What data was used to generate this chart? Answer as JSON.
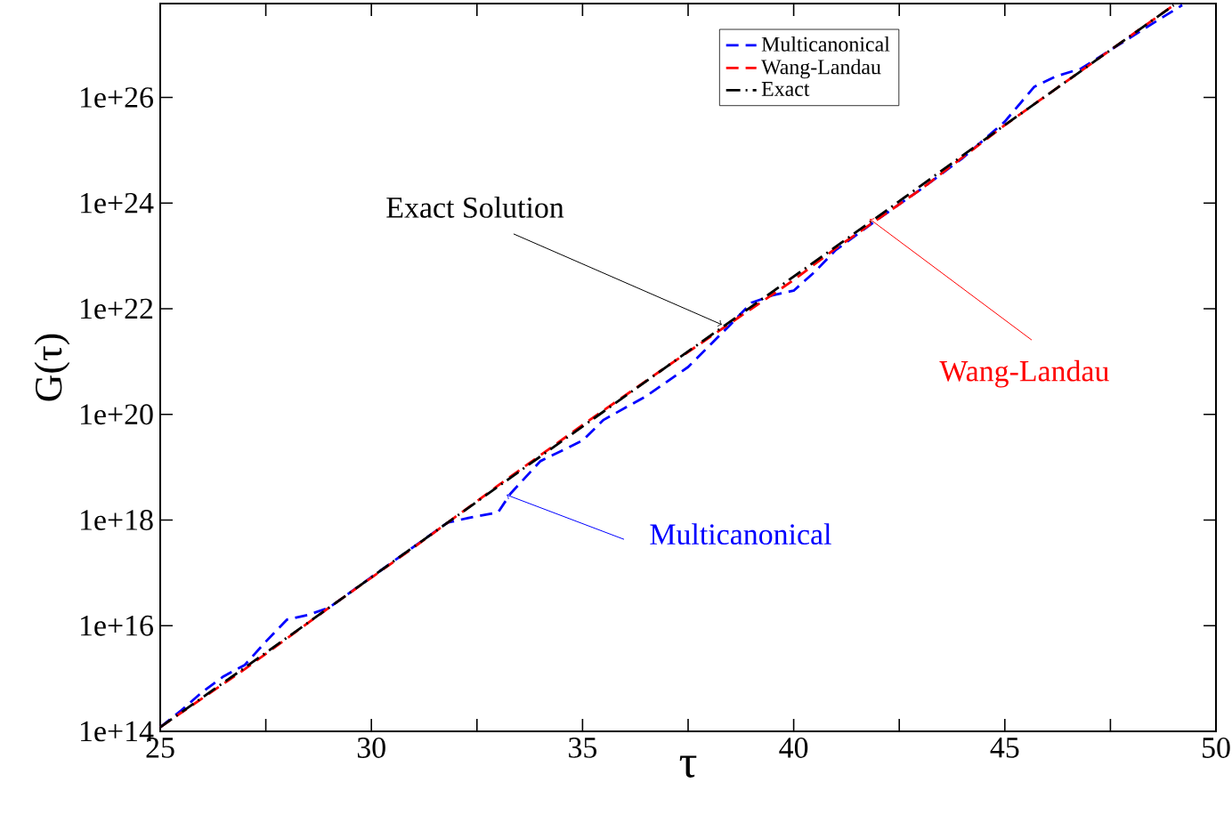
{
  "chart_data": {
    "type": "line",
    "xlabel": "τ",
    "ylabel": "G(τ)",
    "log": "y",
    "xlim": [
      25,
      50
    ],
    "xticks": [
      25,
      {
        "value": 27.5,
        "label": null
      },
      30,
      {
        "value": 32.5,
        "label": null
      },
      35,
      {
        "value": 37.5,
        "label": null
      },
      40,
      {
        "value": 42.5,
        "label": null
      },
      45,
      {
        "value": 47.5,
        "label": null
      },
      50
    ],
    "ylim": [
      100000000000000.0,
      6e+27
    ],
    "yticks": [
      {
        "value": 100000000000000.0,
        "label": "1e+14"
      },
      {
        "value": 1e+16,
        "label": "1e+16"
      },
      {
        "value": 1e+18,
        "label": "1e+18"
      },
      {
        "value": 1e+20,
        "label": "1e+20"
      },
      {
        "value": 1e+22,
        "label": "1e+22"
      },
      {
        "value": 1e+24,
        "label": "1e+24"
      },
      {
        "value": 1e+26,
        "label": "1e+26"
      }
    ],
    "legend": "top right",
    "series": [
      {
        "name": "Multicanonical",
        "color": "#0000ff",
        "line_style": "dashed",
        "x": [
          25,
          25.5,
          26,
          26.5,
          27,
          27.5,
          28,
          28.5,
          29,
          30,
          31,
          31.8,
          32.3,
          33,
          33.3,
          34,
          35,
          35.5,
          36.5,
          37.5,
          38.5,
          39,
          39.5,
          40,
          40.5,
          41,
          42,
          43,
          44,
          45,
          45.7,
          46.2,
          46.8,
          47.5,
          48.3,
          49.2
        ],
        "values": [
          120000000000000.0,
          250000000000000.0,
          560000000000000.0,
          1100000000000000.0,
          1800000000000000.0,
          5000000000000000.0,
          1.3e+16,
          1.6e+16,
          2.2e+16,
          8.3e+16,
          3.1e+17,
          8.9e+17,
          1.1e+18,
          1.4e+18,
          3.2e+18,
          1.3e+19,
          3.2e+19,
          7.9e+19,
          2.2e+20,
          7.9e+20,
          5e+21,
          1.3e+22,
          1.8e+22,
          2.2e+22,
          5e+22,
          1.3e+23,
          5e+23,
          1.8e+24,
          7.1e+24,
          3.5e+25,
          1.6e+26,
          2.5e+26,
          3.5e+26,
          7.9e+26,
          2e+27,
          5.6e+27
        ]
      },
      {
        "name": "Wang-Landau",
        "color": "#ff0000",
        "line_style": "dashed",
        "x": [
          25,
          27,
          29,
          31,
          33,
          35,
          37,
          39,
          40,
          41,
          43,
          45,
          47,
          49
        ],
        "values": [
          120000000000000.0,
          1500000000000000.0,
          2.2e+16,
          3e+17,
          4.5e+18,
          6.3e+19,
          8.1e+20,
          1e+22,
          3.5e+22,
          1.4e+23,
          1.8e+24,
          3e+25,
          4.1e+26,
          5.6e+27
        ]
      },
      {
        "name": "Exact",
        "color": "#000000",
        "line_style": "dashdot",
        "x": [
          25,
          27,
          29,
          31,
          33,
          35,
          37,
          39,
          41,
          43,
          45,
          47,
          49
        ],
        "values": [
          120000000000000.0,
          1600000000000000.0,
          2.2e+16,
          3.1e+17,
          4.3e+18,
          5.9e+19,
          8.1e+20,
          1.1e+22,
          1.5e+23,
          2.1e+24,
          3e+25,
          4.1e+26,
          5.6e+27
        ]
      }
    ],
    "annotations": [
      {
        "text": "Exact Solution",
        "x": 38.3,
        "y": 5e+21
      },
      {
        "text": "Wang-Landau",
        "x": 41.8,
        "y": 5e+23
      },
      {
        "text": "Multicanonical",
        "x": 33.2,
        "y": 3e+18
      }
    ]
  }
}
